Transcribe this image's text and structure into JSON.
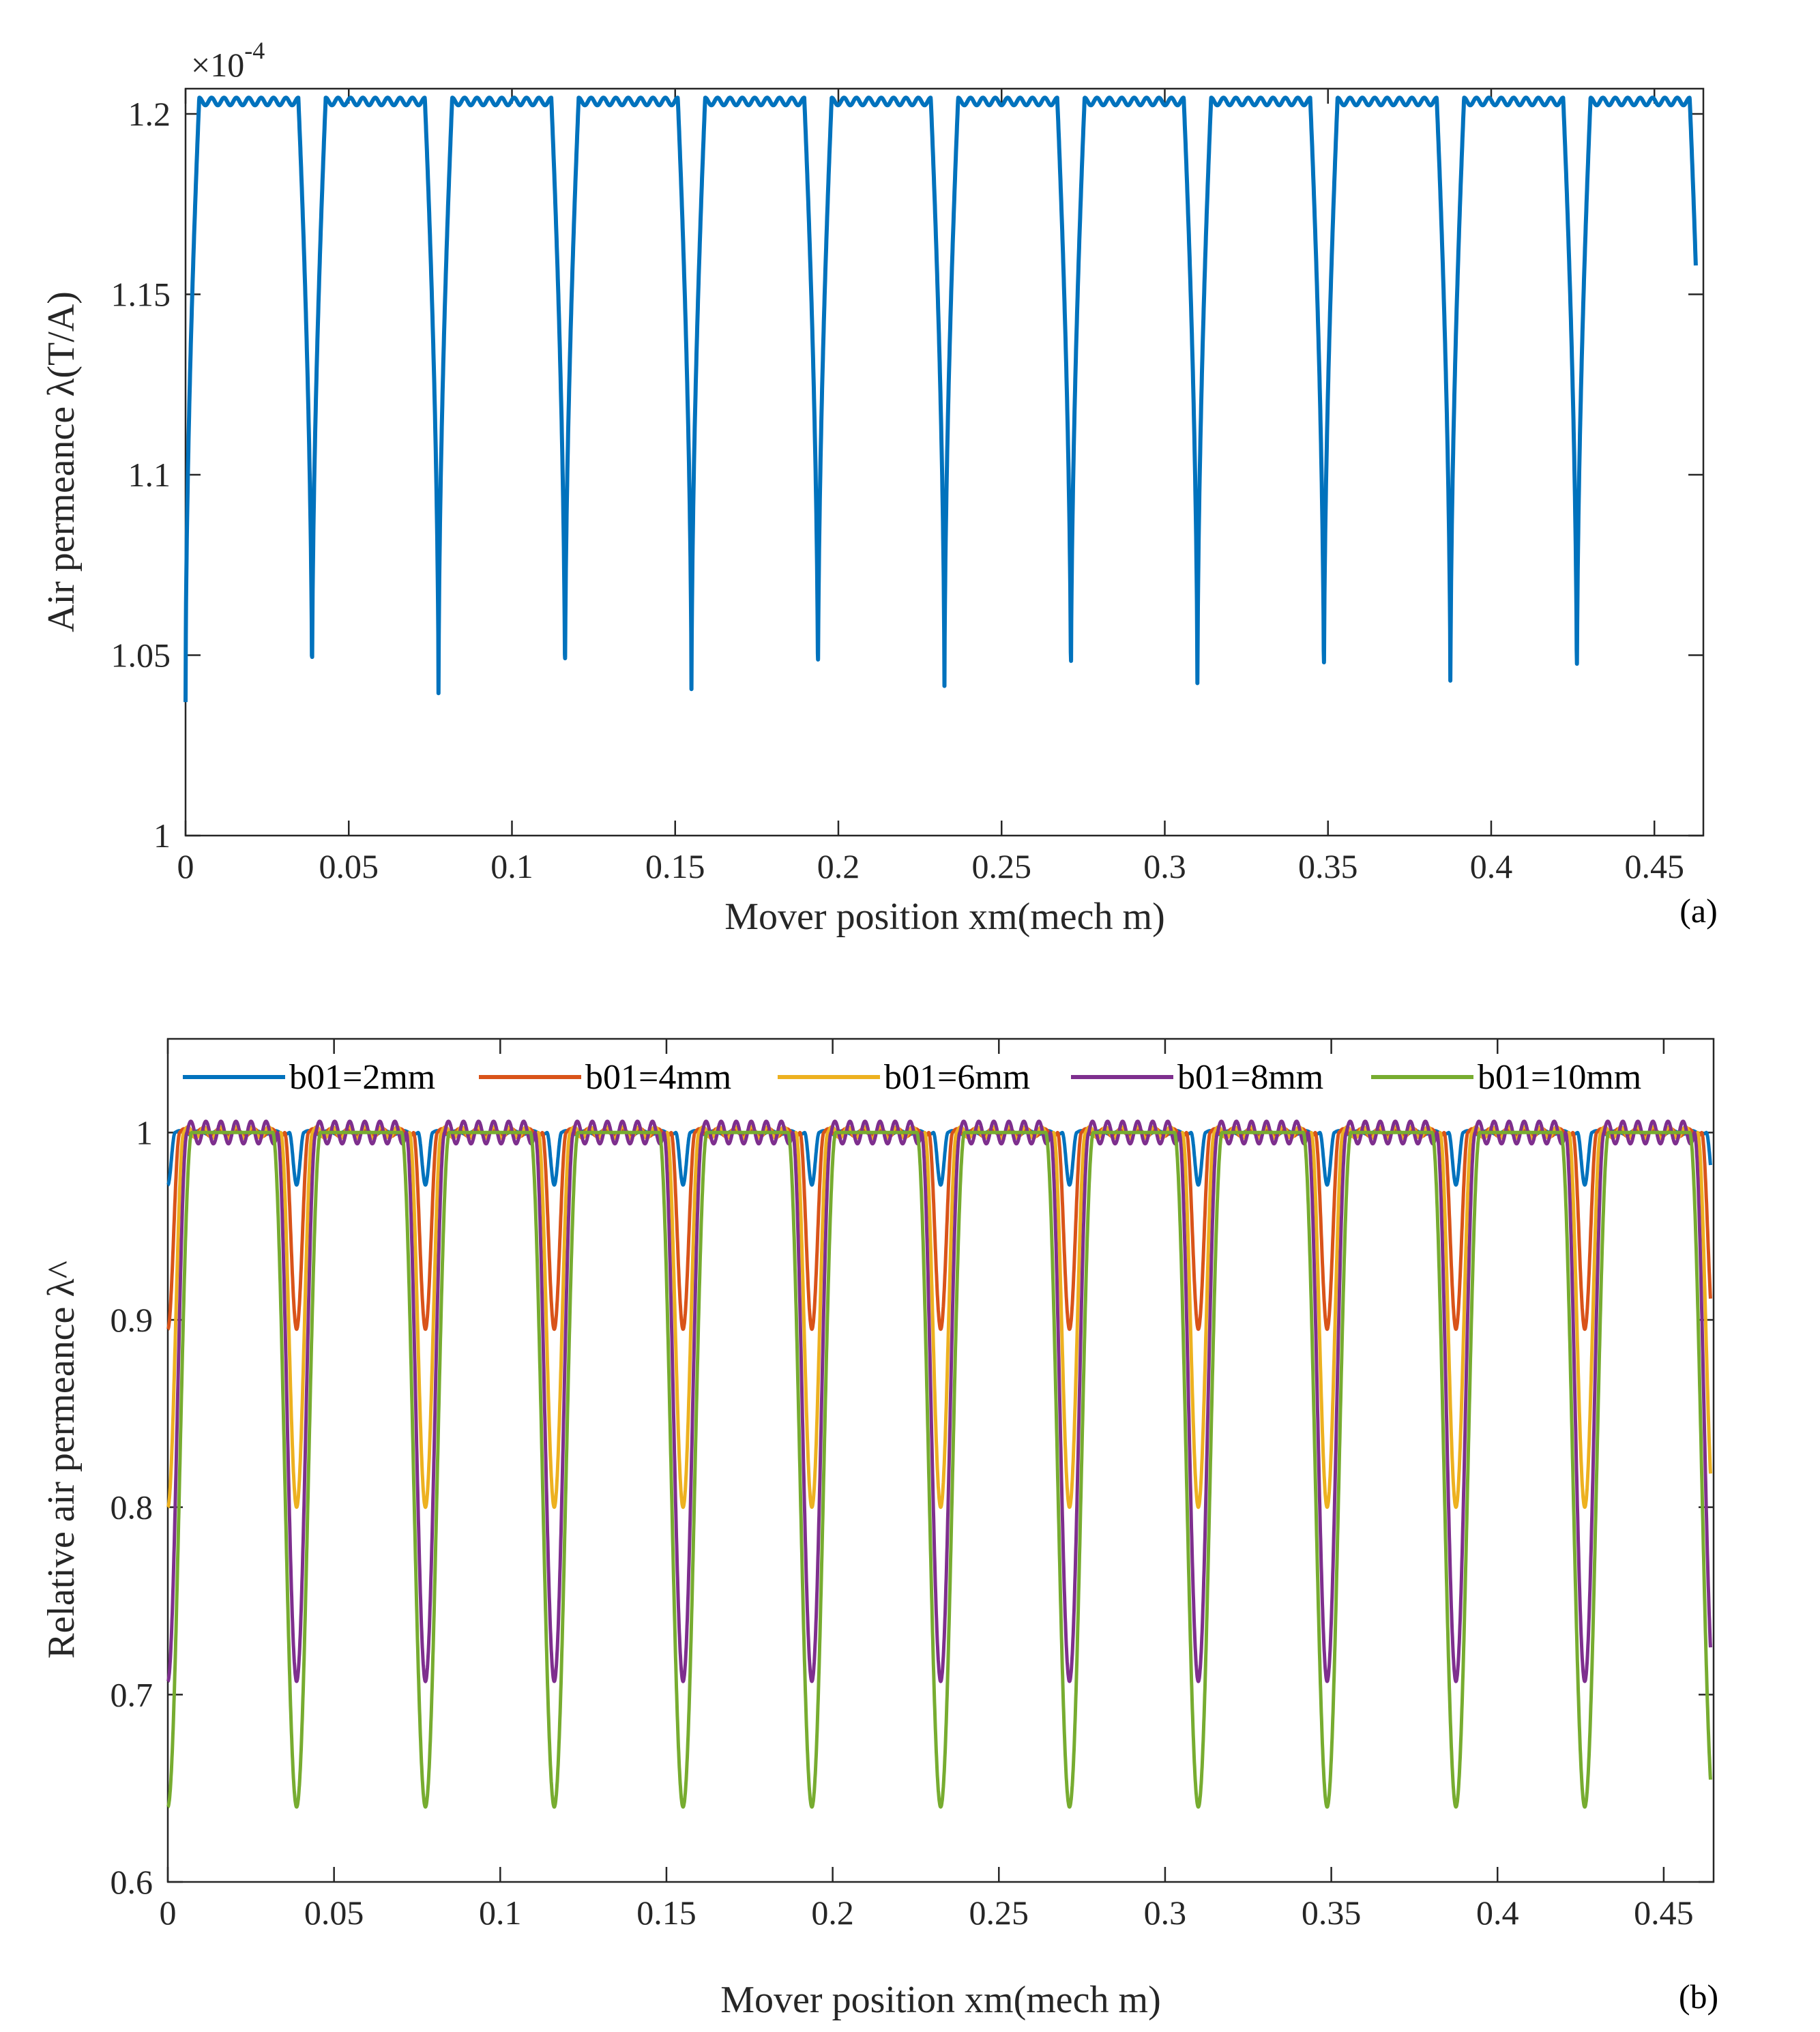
{
  "chart_data": [
    {
      "type": "line",
      "panel_label": "(a)",
      "xlabel": "Mover position xm(mech m)",
      "ylabel": "Air permeance λ(T/A)",
      "y_exponent_base": "×10",
      "y_exponent_power": "-4",
      "xlim": [
        0,
        0.465
      ],
      "ylim": [
        1.0,
        1.207
      ],
      "xticks": [
        0,
        0.05,
        0.1,
        0.15,
        0.2,
        0.25,
        0.3,
        0.35,
        0.4,
        0.45
      ],
      "xtick_labels": [
        "0",
        "0.05",
        "0.1",
        "0.15",
        "0.2",
        "0.25",
        "0.3",
        "0.35",
        "0.4",
        "0.45"
      ],
      "yticks": [
        1.0,
        1.05,
        1.1,
        1.15,
        1.2
      ],
      "ytick_labels": [
        "1",
        "1.05",
        "1.1",
        "1.15",
        "1.2"
      ],
      "grid": false,
      "series": [
        {
          "name": "Air permeance",
          "color": "#0072BD",
          "period": 0.03875,
          "max": 1.2045,
          "min": 1.037,
          "ripple": 0.0021,
          "ripples_per_period": 8
        }
      ]
    },
    {
      "type": "line",
      "panel_label": "(b)",
      "xlabel": "Mover position xm(mech m)",
      "ylabel": "Relative air permeance λ^",
      "xlim": [
        0,
        0.465
      ],
      "ylim": [
        0.6,
        1.05
      ],
      "xticks": [
        0,
        0.05,
        0.1,
        0.15,
        0.2,
        0.25,
        0.3,
        0.35,
        0.4,
        0.45
      ],
      "xtick_labels": [
        "0",
        "0.05",
        "0.1",
        "0.15",
        "0.2",
        "0.25",
        "0.3",
        "0.35",
        "0.4",
        "0.45"
      ],
      "yticks": [
        0.6,
        0.7,
        0.8,
        0.9,
        1.0
      ],
      "ytick_labels": [
        "0.6",
        "0.7",
        "0.8",
        "0.9",
        "1"
      ],
      "grid": false,
      "legend_position": "top",
      "series": [
        {
          "name": "b01=2mm",
          "color": "#0072BD",
          "period": 0.03875,
          "min": 0.972,
          "ripple": 0.001
        },
        {
          "name": "b01=4mm",
          "color": "#D95319",
          "period": 0.03875,
          "min": 0.895,
          "ripple": 0.002
        },
        {
          "name": "b01=6mm",
          "color": "#EDB120",
          "period": 0.03875,
          "min": 0.8,
          "ripple": 0.003
        },
        {
          "name": "b01=8mm",
          "color": "#7E2F8E",
          "period": 0.03875,
          "min": 0.707,
          "ripple": 0.006
        },
        {
          "name": "b01=10mm",
          "color": "#77AC30",
          "period": 0.03875,
          "min": 0.64,
          "ripple": 0.0
        }
      ]
    }
  ]
}
